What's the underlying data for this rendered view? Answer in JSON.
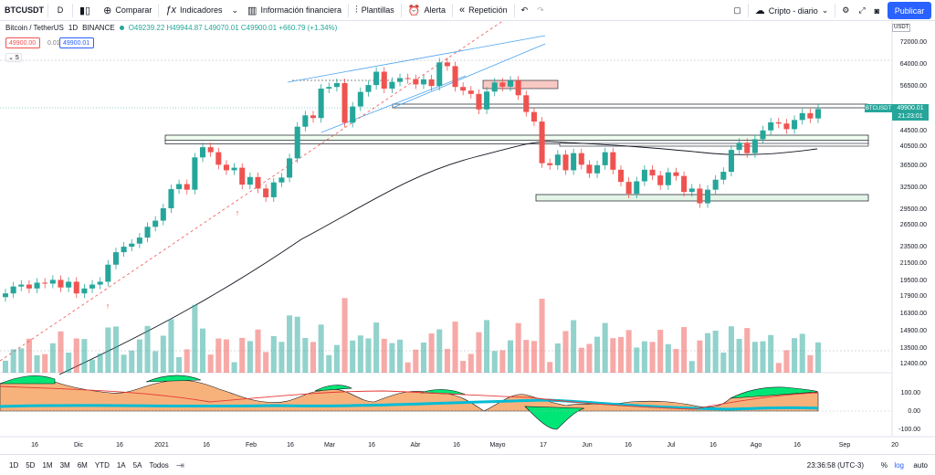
{
  "toolbar": {
    "symbol": "BTCUSDT",
    "interval": "D",
    "compare": "Comparar",
    "indicators": "Indicadores",
    "financials": "Información financiera",
    "templates": "Plantillas",
    "alert": "Alerta",
    "replay": "Repetición",
    "watchlist": "Cripto - diario",
    "publish": "Publicar"
  },
  "legend": {
    "title": "Bitcoin / TetherUS",
    "timeframe": "1D",
    "exchange": "BINANCE",
    "ohlc": "O49239.22 H49944.87 L49070.01 C49900.01 +660.79 (+1.34%)",
    "bid": "49900.00",
    "spread": "0.01",
    "ask": "49900.01",
    "collapse": "5"
  },
  "price_axis": {
    "currency": "USDT",
    "last_symbol": "BTCUSDT",
    "last_price": "49900.01",
    "countdown": "21:23:01",
    "ticks": [
      "72000.00",
      "64000.00",
      "56500.00",
      "50000.00",
      "44500.00",
      "40500.00",
      "36500.00",
      "32500.00",
      "29500.00",
      "26500.00",
      "23500.00",
      "21500.00",
      "19500.00",
      "17900.00",
      "16300.00",
      "14900.00",
      "13500.00",
      "12400.00"
    ],
    "osc_ticks": [
      "100.00",
      "0.00",
      "-100.00"
    ]
  },
  "time_axis": [
    "16",
    "Dic",
    "16",
    "2021",
    "16",
    "Feb",
    "16",
    "Mar",
    "16",
    "Abr",
    "16",
    "Mayo",
    "17",
    "Jun",
    "16",
    "Jul",
    "16",
    "Ago",
    "16",
    "Sep",
    "20"
  ],
  "bottom": {
    "ranges": [
      "1D",
      "5D",
      "1M",
      "3M",
      "6M",
      "YTD",
      "1A",
      "5A",
      "Todos"
    ],
    "clock": "23:36:58 (UTC-3)",
    "percent": "%",
    "log": "log",
    "auto": "auto"
  },
  "colors": {
    "up": "#26a69a",
    "down": "#ef5350",
    "accent": "#2962ff",
    "ma": "#000000",
    "oscillator_fill": "#f7b27c"
  },
  "chart_data": {
    "type": "candlestick",
    "price_range": [
      12400,
      72000
    ],
    "scale": "log",
    "closes": [
      18200,
      18900,
      19100,
      18700,
      19300,
      19200,
      19600,
      18800,
      19400,
      18200,
      18700,
      19100,
      19400,
      21300,
      22800,
      23500,
      23900,
      24700,
      26200,
      27100,
      29000,
      32200,
      33100,
      32100,
      38300,
      40500,
      39400,
      36800,
      35700,
      36200,
      33000,
      34400,
      32300,
      30800,
      33400,
      34300,
      38100,
      45300,
      48200,
      47500,
      55800,
      56300,
      57500,
      46300,
      50600,
      54800,
      56900,
      61200,
      55800,
      57900,
      59100,
      58800,
      57100,
      58700,
      56600,
      64400,
      63100,
      56300,
      55200,
      54200,
      49800,
      54900,
      57700,
      56400,
      58300,
      53800,
      49100,
      46600,
      37100,
      36700,
      38900,
      35700,
      39200,
      36800,
      35100,
      36700,
      39400,
      35800,
      33500,
      31400,
      33600,
      35800,
      34700,
      32900,
      35300,
      34600,
      31700,
      32300,
      29800,
      32100,
      33900,
      35400,
      39900,
      41500,
      39200,
      42300,
      44400,
      46400,
      46100,
      44700,
      47000,
      48800,
      47400,
      49900
    ]
  }
}
